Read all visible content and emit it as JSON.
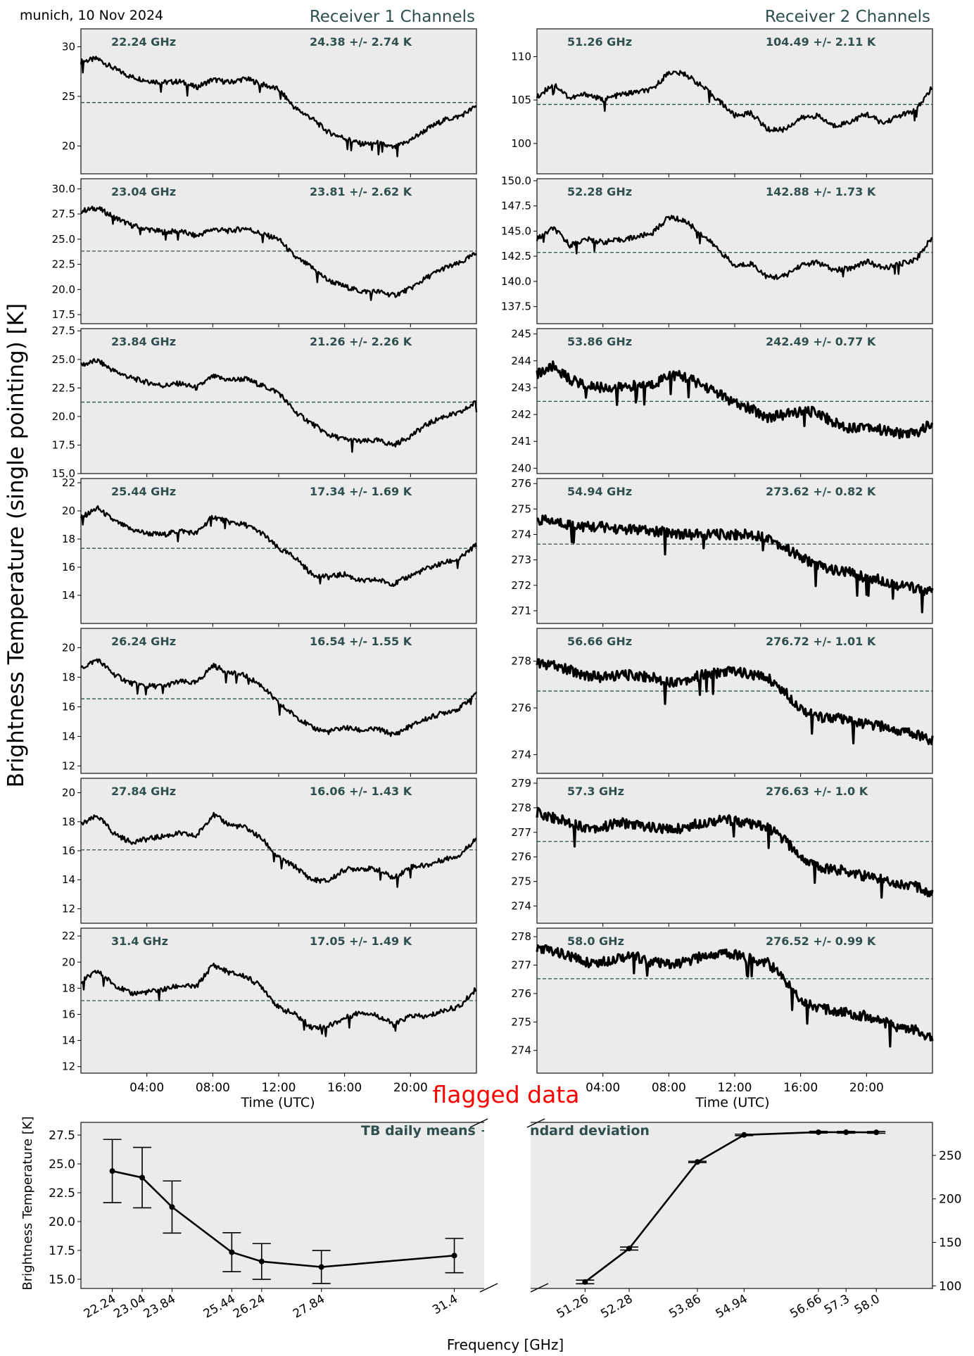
{
  "header": {
    "location_date": "munich, 10 Nov 2024",
    "receiver1_title": "Receiver 1 Channels",
    "receiver2_title": "Receiver 2 Channels",
    "ylabel": "Brightness Temperature (single pointing) [K]",
    "time_xlabel": "Time (UTC)",
    "time_ticks": [
      "04:00",
      "08:00",
      "12:00",
      "16:00",
      "20:00"
    ],
    "flag_text": "flagged data"
  },
  "colors": {
    "panel_bg": "#ebebeb",
    "trace": "#000000",
    "mean_line": "#2f4f4f",
    "annotation": "#2f4f4f",
    "flag": "#ff0000"
  },
  "chart_data": [
    {
      "type": "line",
      "receiver": 1,
      "x_unit": "hours UTC",
      "xlim": [
        0,
        24
      ],
      "panels": [
        {
          "freq_label": "22.24 GHz",
          "stats_label": "24.38 +/- 2.74 K",
          "mean": 24.38,
          "ylim": [
            17.2,
            31.8
          ],
          "yticks": [
            20,
            25,
            30
          ],
          "x": [
            0,
            1,
            2,
            3,
            4,
            5,
            6,
            7,
            8,
            9,
            10,
            11,
            12,
            13,
            14,
            15,
            16,
            17,
            18,
            19,
            20,
            21,
            22,
            23,
            24
          ],
          "y": [
            28.5,
            28.8,
            27.8,
            27.0,
            26.6,
            26.4,
            26.5,
            25.9,
            26.7,
            26.4,
            26.8,
            26.2,
            25.7,
            23.8,
            22.8,
            21.4,
            20.8,
            20.2,
            20.3,
            19.8,
            20.6,
            21.7,
            22.6,
            23.0,
            24.0
          ]
        },
        {
          "freq_label": "23.04 GHz",
          "stats_label": "23.81 +/- 2.62 K",
          "mean": 23.81,
          "ylim": [
            16.6,
            31.0
          ],
          "yticks": [
            17.5,
            20.0,
            22.5,
            25.0,
            27.5,
            30.0
          ],
          "x": [
            0,
            1,
            2,
            3,
            4,
            5,
            6,
            7,
            8,
            9,
            10,
            11,
            12,
            13,
            14,
            15,
            16,
            17,
            18,
            19,
            20,
            21,
            22,
            23,
            24
          ],
          "y": [
            27.8,
            28.1,
            27.2,
            26.4,
            26.0,
            25.7,
            25.8,
            25.3,
            26.0,
            25.8,
            26.1,
            25.5,
            25.0,
            23.2,
            22.2,
            20.9,
            20.3,
            19.8,
            19.8,
            19.4,
            20.1,
            21.2,
            22.1,
            22.6,
            23.6
          ]
        },
        {
          "freq_label": "23.84 GHz",
          "stats_label": "21.26 +/- 2.26 K",
          "mean": 21.26,
          "ylim": [
            15.0,
            27.7
          ],
          "yticks": [
            15.0,
            17.5,
            20.0,
            22.5,
            25.0,
            27.5
          ],
          "x": [
            0,
            1,
            2,
            3,
            4,
            5,
            6,
            7,
            8,
            9,
            10,
            11,
            12,
            13,
            14,
            15,
            16,
            17,
            18,
            19,
            20,
            21,
            22,
            23,
            24
          ],
          "y": [
            24.5,
            24.9,
            24.0,
            23.4,
            23.0,
            22.7,
            22.9,
            22.5,
            23.5,
            23.2,
            23.3,
            22.7,
            22.1,
            20.4,
            19.4,
            18.4,
            18.0,
            17.8,
            17.9,
            17.5,
            18.3,
            19.3,
            20.0,
            20.3,
            21.3
          ]
        },
        {
          "freq_label": "25.44 GHz",
          "stats_label": "17.34 +/- 1.69 K",
          "mean": 17.34,
          "ylim": [
            12.0,
            22.3
          ],
          "yticks": [
            14,
            16,
            18,
            20,
            22
          ],
          "x": [
            0,
            1,
            2,
            3,
            4,
            5,
            6,
            7,
            8,
            9,
            10,
            11,
            12,
            13,
            14,
            15,
            16,
            17,
            18,
            19,
            20,
            21,
            22,
            23,
            24
          ],
          "y": [
            19.5,
            20.2,
            19.3,
            18.7,
            18.4,
            18.3,
            18.6,
            18.4,
            19.6,
            19.2,
            19.0,
            18.4,
            17.3,
            16.7,
            15.5,
            15.3,
            15.5,
            15.0,
            15.1,
            14.8,
            15.4,
            15.9,
            16.3,
            16.6,
            17.6
          ]
        },
        {
          "freq_label": "26.24 GHz",
          "stats_label": "16.54 +/- 1.55 K",
          "mean": 16.54,
          "ylim": [
            11.5,
            21.3
          ],
          "yticks": [
            12,
            14,
            16,
            18,
            20
          ],
          "x": [
            0,
            1,
            2,
            3,
            4,
            5,
            6,
            7,
            8,
            9,
            10,
            11,
            12,
            13,
            14,
            15,
            16,
            17,
            18,
            19,
            20,
            21,
            22,
            23,
            24
          ],
          "y": [
            18.6,
            19.2,
            18.2,
            17.6,
            17.4,
            17.4,
            17.7,
            17.6,
            18.8,
            18.3,
            18.1,
            17.4,
            16.2,
            15.4,
            14.6,
            14.3,
            14.6,
            14.4,
            14.5,
            14.1,
            14.7,
            15.2,
            15.6,
            15.9,
            17.0
          ]
        },
        {
          "freq_label": "27.84 GHz",
          "stats_label": "16.06 +/- 1.43 K",
          "mean": 16.06,
          "ylim": [
            11.0,
            21.0
          ],
          "yticks": [
            12,
            14,
            16,
            18,
            20
          ],
          "x": [
            0,
            1,
            2,
            3,
            4,
            5,
            6,
            7,
            8,
            9,
            10,
            11,
            12,
            13,
            14,
            15,
            16,
            17,
            18,
            19,
            20,
            21,
            22,
            23,
            24
          ],
          "y": [
            17.8,
            18.4,
            17.2,
            16.6,
            16.8,
            17.0,
            17.2,
            17.0,
            18.5,
            17.8,
            17.6,
            16.8,
            15.5,
            14.9,
            14.0,
            13.9,
            14.7,
            14.8,
            14.7,
            14.1,
            14.9,
            15.0,
            15.4,
            15.7,
            16.9
          ]
        },
        {
          "freq_label": "31.4 GHz",
          "stats_label": "17.05 +/- 1.49 K",
          "mean": 17.05,
          "ylim": [
            11.5,
            22.6
          ],
          "yticks": [
            12,
            14,
            16,
            18,
            20,
            22
          ],
          "x": [
            0,
            1,
            2,
            3,
            4,
            5,
            6,
            7,
            8,
            9,
            10,
            11,
            12,
            13,
            14,
            15,
            16,
            17,
            18,
            19,
            20,
            21,
            22,
            23,
            24
          ],
          "y": [
            18.5,
            19.3,
            18.3,
            17.6,
            17.7,
            17.9,
            18.2,
            18.1,
            19.8,
            19.2,
            18.9,
            18.1,
            16.5,
            16.0,
            15.0,
            15.1,
            15.7,
            16.2,
            15.9,
            15.2,
            15.9,
            15.8,
            16.3,
            16.6,
            18.0
          ]
        }
      ]
    },
    {
      "type": "line",
      "receiver": 2,
      "x_unit": "hours UTC",
      "xlim": [
        0,
        24
      ],
      "panels": [
        {
          "freq_label": "51.26 GHz",
          "stats_label": "104.49 +/- 2.11 K",
          "mean": 104.49,
          "ylim": [
            96.5,
            113.2
          ],
          "yticks": [
            100,
            105,
            110
          ],
          "x": [
            0,
            1,
            2,
            3,
            4,
            5,
            6,
            7,
            8,
            9,
            10,
            11,
            12,
            13,
            14,
            15,
            16,
            17,
            18,
            19,
            20,
            21,
            22,
            23,
            24
          ],
          "y": [
            105.3,
            106.9,
            105.2,
            105.7,
            105.0,
            105.6,
            105.9,
            106.2,
            108.2,
            108.0,
            106.6,
            105.0,
            103.2,
            103.5,
            101.6,
            101.6,
            102.9,
            103.2,
            102.0,
            102.5,
            103.4,
            102.3,
            103.2,
            103.8,
            106.5
          ]
        },
        {
          "freq_label": "52.28 GHz",
          "stats_label": "142.88 +/- 1.73 K",
          "mean": 142.88,
          "ylim": [
            135.8,
            150.2
          ],
          "yticks": [
            137.5,
            140.0,
            142.5,
            145.0,
            147.5,
            150.0
          ],
          "x": [
            0,
            1,
            2,
            3,
            4,
            5,
            6,
            7,
            8,
            9,
            10,
            11,
            12,
            13,
            14,
            15,
            16,
            17,
            18,
            19,
            20,
            21,
            22,
            23,
            24
          ],
          "y": [
            144.2,
            145.3,
            143.6,
            144.2,
            143.9,
            144.1,
            144.4,
            144.8,
            146.4,
            146.0,
            144.7,
            143.2,
            141.5,
            141.8,
            140.4,
            140.5,
            141.6,
            141.9,
            141.1,
            141.3,
            142.0,
            141.3,
            141.7,
            142.2,
            144.4
          ]
        },
        {
          "freq_label": "53.86 GHz",
          "stats_label": "242.49 +/- 0.77 K",
          "mean": 242.49,
          "ylim": [
            239.8,
            245.2
          ],
          "yticks": [
            240,
            241,
            242,
            243,
            244,
            245
          ],
          "x": [
            0,
            1,
            2,
            3,
            4,
            5,
            6,
            7,
            8,
            9,
            10,
            11,
            12,
            13,
            14,
            15,
            16,
            17,
            18,
            19,
            20,
            21,
            22,
            23,
            24
          ],
          "y": [
            243.5,
            243.8,
            243.3,
            243.1,
            243.0,
            243.0,
            243.1,
            243.1,
            243.5,
            243.4,
            243.1,
            242.8,
            242.4,
            242.2,
            241.9,
            242.0,
            242.1,
            242.1,
            241.7,
            241.5,
            241.6,
            241.4,
            241.3,
            241.3,
            241.7
          ]
        },
        {
          "freq_label": "54.94 GHz",
          "stats_label": "273.62 +/- 0.82 K",
          "mean": 273.62,
          "ylim": [
            270.5,
            276.2
          ],
          "yticks": [
            271,
            272,
            273,
            274,
            275,
            276
          ],
          "x": [
            0,
            1,
            2,
            3,
            4,
            5,
            6,
            7,
            8,
            9,
            10,
            11,
            12,
            13,
            14,
            15,
            16,
            17,
            18,
            19,
            20,
            21,
            22,
            23,
            24
          ],
          "y": [
            274.6,
            274.5,
            274.4,
            274.3,
            274.3,
            274.2,
            274.2,
            274.1,
            274.1,
            274.0,
            274.0,
            274.0,
            274.0,
            274.0,
            273.9,
            273.5,
            273.1,
            272.8,
            272.6,
            272.5,
            272.3,
            272.2,
            272.0,
            271.9,
            271.7
          ]
        },
        {
          "freq_label": "56.66 GHz",
          "stats_label": "276.72 +/- 1.01 K",
          "mean": 276.72,
          "ylim": [
            273.2,
            279.4
          ],
          "yticks": [
            274,
            276,
            278
          ],
          "x": [
            0,
            1,
            2,
            3,
            4,
            5,
            6,
            7,
            8,
            9,
            10,
            11,
            12,
            13,
            14,
            15,
            16,
            17,
            18,
            19,
            20,
            21,
            22,
            23,
            24
          ],
          "y": [
            277.9,
            277.8,
            277.6,
            277.4,
            277.3,
            277.4,
            277.4,
            277.3,
            277.1,
            277.2,
            277.4,
            277.5,
            277.6,
            277.4,
            277.3,
            276.7,
            276.0,
            275.6,
            275.6,
            275.4,
            275.3,
            275.2,
            275.0,
            274.9,
            274.6
          ]
        },
        {
          "freq_label": "57.3 GHz",
          "stats_label": "276.63 +/- 1.0 K",
          "mean": 276.63,
          "ylim": [
            273.3,
            279.2
          ],
          "yticks": [
            274,
            275,
            276,
            277,
            278,
            279
          ],
          "x": [
            0,
            1,
            2,
            3,
            4,
            5,
            6,
            7,
            8,
            9,
            10,
            11,
            12,
            13,
            14,
            15,
            16,
            17,
            18,
            19,
            20,
            21,
            22,
            23,
            24
          ],
          "y": [
            277.8,
            277.6,
            277.4,
            277.2,
            277.2,
            277.4,
            277.3,
            277.2,
            277.1,
            277.2,
            277.4,
            277.5,
            277.5,
            277.3,
            277.2,
            276.7,
            276.0,
            275.6,
            275.5,
            275.4,
            275.2,
            275.1,
            274.9,
            274.8,
            274.5
          ]
        },
        {
          "freq_label": "58.0 GHz",
          "stats_label": "276.52 +/- 0.99 K",
          "mean": 276.52,
          "ylim": [
            273.2,
            278.3
          ],
          "yticks": [
            274,
            275,
            276,
            277,
            278
          ],
          "x": [
            0,
            1,
            2,
            3,
            4,
            5,
            6,
            7,
            8,
            9,
            10,
            11,
            12,
            13,
            14,
            15,
            16,
            17,
            18,
            19,
            20,
            21,
            22,
            23,
            24
          ],
          "y": [
            277.6,
            277.5,
            277.3,
            277.1,
            277.1,
            277.3,
            277.3,
            277.1,
            277.0,
            277.1,
            277.3,
            277.4,
            277.4,
            277.2,
            277.1,
            276.5,
            275.8,
            275.5,
            275.4,
            275.3,
            275.2,
            275.0,
            274.8,
            274.7,
            274.4
          ]
        }
      ]
    },
    {
      "type": "line",
      "title": "TB daily means +/- standard deviation",
      "xlabel": "Frequency [GHz]",
      "ylabel_left": "Brightness Temperature [K]",
      "receiver1": {
        "frequencies": [
          22.24,
          23.04,
          23.84,
          25.44,
          26.24,
          27.84,
          31.4
        ],
        "tick_labels": [
          "22.24",
          "23.04",
          "23.84",
          "25.44",
          "26.24",
          "27.84",
          "31.4"
        ],
        "means": [
          24.38,
          23.81,
          21.26,
          17.34,
          16.54,
          16.06,
          17.05
        ],
        "std": [
          2.74,
          2.62,
          2.26,
          1.69,
          1.55,
          1.43,
          1.49
        ],
        "ylim": [
          14.2,
          28.6
        ],
        "yticks": [
          15.0,
          17.5,
          20.0,
          22.5,
          25.0,
          27.5
        ]
      },
      "receiver2": {
        "frequencies": [
          51.26,
          52.28,
          53.86,
          54.94,
          56.66,
          57.3,
          58.0
        ],
        "tick_labels": [
          "51.26",
          "52.28",
          "53.86",
          "54.94",
          "56.66",
          "57.3",
          "58.0"
        ],
        "means": [
          104.49,
          142.88,
          242.49,
          273.62,
          276.72,
          276.63,
          276.52
        ],
        "std": [
          2.11,
          1.73,
          0.77,
          0.82,
          1.01,
          1.0,
          0.99
        ],
        "ylim": [
          97,
          288
        ],
        "yticks": [
          100,
          150,
          200,
          250
        ]
      }
    }
  ]
}
